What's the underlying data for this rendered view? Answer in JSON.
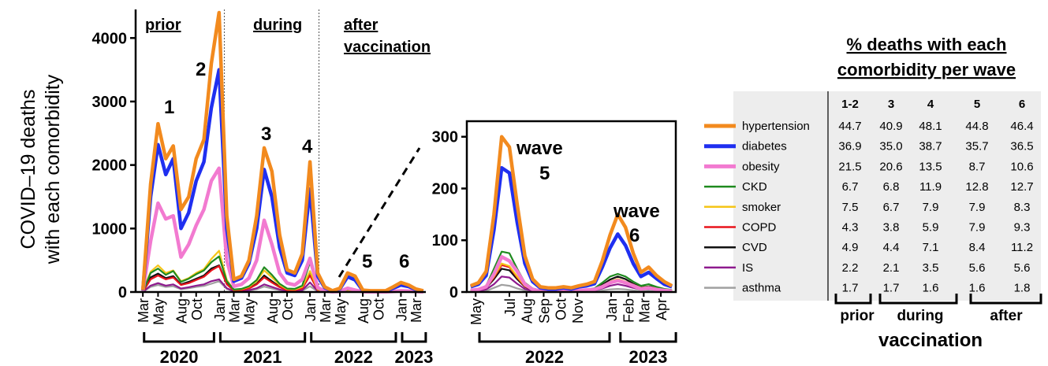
{
  "ylabel": [
    "COVID–19 deaths",
    "with each comorbidity"
  ],
  "main_chart": {
    "type": "line",
    "y_ticks": [
      0,
      1000,
      2000,
      3000,
      4000
    ],
    "ylim": [
      0,
      4450
    ],
    "period_labels": [
      "prior",
      "during"
    ],
    "after_label": [
      "after",
      "vaccination"
    ],
    "wave_labels": [
      "1",
      "2",
      "3",
      "4",
      "5",
      "6"
    ],
    "month_ticks": [
      "Mar",
      "May",
      "Aug",
      "Oct",
      "Jan",
      "Mar",
      "May",
      "Aug",
      "Oct",
      "Jan",
      "Mar",
      "May",
      "Aug",
      "Oct",
      "Jan",
      "Mar"
    ],
    "year_labels": [
      "2020",
      "2021",
      "2022",
      "2023"
    ]
  },
  "inset_chart": {
    "type": "line",
    "y_ticks": [
      0,
      100,
      200,
      300
    ],
    "ylim": [
      0,
      330
    ],
    "month_ticks": [
      "May",
      "Jul",
      "Aug",
      "Sep",
      "Oct",
      "Nov",
      "Jan",
      "Feb",
      "Mar",
      "Apr"
    ],
    "year_labels": [
      "2022",
      "2023"
    ],
    "wave5_label": [
      "wave",
      "5"
    ],
    "wave6_label": [
      "wave",
      "6"
    ]
  },
  "table": {
    "title": [
      "% deaths with each",
      "comorbidity per wave"
    ],
    "columns": [
      "1-2",
      "3",
      "4",
      "5",
      "6"
    ],
    "rows": [
      {
        "name": "hypertension",
        "color": "#f28a1e",
        "values": [
          "44.7",
          "40.9",
          "48.1",
          "44.8",
          "46.4"
        ]
      },
      {
        "name": "diabetes",
        "color": "#1f2ff0",
        "values": [
          "36.9",
          "35.0",
          "38.7",
          "35.7",
          "36.5"
        ]
      },
      {
        "name": "obesity",
        "color": "#f27ad0",
        "values": [
          "21.5",
          "20.6",
          "13.5",
          "8.7",
          "10.6"
        ]
      },
      {
        "name": "CKD",
        "color": "#1f8a1f",
        "values": [
          "6.7",
          "6.8",
          "11.9",
          "12.8",
          "12.7"
        ]
      },
      {
        "name": "smoker",
        "color": "#f5c518",
        "values": [
          "7.5",
          "6.7",
          "7.9",
          "7.9",
          "8.3"
        ]
      },
      {
        "name": "COPD",
        "color": "#e8141c",
        "values": [
          "4.3",
          "3.8",
          "5.9",
          "7.9",
          "9.3"
        ]
      },
      {
        "name": "CVD",
        "color": "#111111",
        "values": [
          "4.9",
          "4.4",
          "7.1",
          "8.4",
          "11.2"
        ]
      },
      {
        "name": "IS",
        "color": "#8e1a8e",
        "values": [
          "2.2",
          "2.1",
          "3.5",
          "5.6",
          "5.6"
        ]
      },
      {
        "name": "asthma",
        "color": "#a0a0a0",
        "values": [
          "1.7",
          "1.7",
          "1.6",
          "1.6",
          "1.8"
        ]
      }
    ],
    "footer": [
      "prior",
      "during",
      "after",
      "vaccination"
    ]
  },
  "chart_data": [
    {
      "type": "line",
      "title": "",
      "xlabel": "",
      "ylabel": "COVID–19 deaths with each comorbidity",
      "ylim": [
        0,
        4450
      ],
      "x": [
        "2020-03",
        "2020-04",
        "2020-05",
        "2020-06",
        "2020-07",
        "2020-08",
        "2020-09",
        "2020-10",
        "2020-11",
        "2020-12",
        "2021-01",
        "2021-02",
        "2021-03",
        "2021-04",
        "2021-05",
        "2021-06",
        "2021-07",
        "2021-08",
        "2021-09",
        "2021-10",
        "2021-11",
        "2021-12",
        "2022-01",
        "2022-02",
        "2022-03",
        "2022-04",
        "2022-05",
        "2022-06",
        "2022-07",
        "2022-08",
        "2022-09",
        "2022-10",
        "2022-11",
        "2022-12",
        "2023-01",
        "2023-02",
        "2023-03",
        "2023-04"
      ],
      "series": [
        {
          "name": "hypertension",
          "values": [
            30,
            1700,
            2650,
            2100,
            2300,
            1300,
            1500,
            2100,
            2400,
            3600,
            4400,
            1200,
            200,
            250,
            500,
            1200,
            2270,
            1900,
            900,
            350,
            300,
            600,
            2050,
            300,
            80,
            20,
            60,
            300,
            250,
            30,
            20,
            20,
            20,
            80,
            150,
            110,
            50,
            20
          ]
        },
        {
          "name": "diabetes",
          "values": [
            25,
            1500,
            2320,
            1850,
            2100,
            1000,
            1250,
            1750,
            2050,
            2900,
            3500,
            1000,
            170,
            220,
            450,
            1000,
            1930,
            1500,
            700,
            300,
            260,
            500,
            1620,
            250,
            70,
            15,
            50,
            240,
            190,
            25,
            15,
            15,
            15,
            60,
            110,
            85,
            40,
            15
          ]
        },
        {
          "name": "obesity",
          "values": [
            15,
            800,
            1400,
            1150,
            1200,
            550,
            750,
            1050,
            1300,
            1750,
            1950,
            500,
            90,
            120,
            220,
            500,
            1130,
            750,
            300,
            140,
            110,
            200,
            530,
            70,
            15,
            5,
            10,
            60,
            30,
            5,
            3,
            3,
            3,
            10,
            20,
            15,
            8,
            3
          ]
        },
        {
          "name": "CKD",
          "values": [
            5,
            300,
            370,
            270,
            330,
            160,
            210,
            280,
            340,
            470,
            560,
            170,
            40,
            50,
            90,
            190,
            390,
            270,
            130,
            55,
            50,
            100,
            470,
            50,
            10,
            3,
            8,
            40,
            30,
            5,
            3,
            3,
            3,
            15,
            20,
            15,
            8,
            3
          ]
        },
        {
          "name": "smoker",
          "values": [
            5,
            320,
            420,
            300,
            340,
            170,
            220,
            300,
            360,
            520,
            650,
            190,
            35,
            45,
            80,
            170,
            340,
            230,
            110,
            45,
            40,
            80,
            330,
            40,
            8,
            3,
            6,
            30,
            25,
            4,
            2,
            2,
            2,
            10,
            15,
            12,
            6,
            2
          ]
        },
        {
          "name": "COPD",
          "values": [
            3,
            200,
            260,
            200,
            230,
            110,
            140,
            190,
            240,
            340,
            410,
            120,
            25,
            30,
            55,
            120,
            230,
            150,
            75,
            30,
            27,
            55,
            260,
            30,
            6,
            2,
            5,
            25,
            20,
            3,
            2,
            2,
            2,
            8,
            12,
            10,
            5,
            2
          ]
        },
        {
          "name": "CVD",
          "values": [
            3,
            230,
            290,
            220,
            250,
            120,
            160,
            210,
            260,
            370,
            420,
            130,
            28,
            35,
            60,
            130,
            260,
            170,
            85,
            35,
            30,
            60,
            320,
            35,
            7,
            2,
            6,
            30,
            25,
            4,
            2,
            2,
            2,
            10,
            15,
            12,
            6,
            2
          ]
        },
        {
          "name": "IS",
          "values": [
            2,
            100,
            140,
            100,
            120,
            55,
            75,
            100,
            120,
            170,
            200,
            60,
            12,
            15,
            28,
            60,
            120,
            80,
            40,
            16,
            14,
            28,
            150,
            16,
            4,
            1,
            3,
            15,
            12,
            2,
            1,
            1,
            1,
            5,
            8,
            6,
            3,
            1
          ]
        },
        {
          "name": "asthma",
          "values": [
            2,
            80,
            110,
            80,
            90,
            45,
            60,
            80,
            95,
            130,
            170,
            50,
            10,
            12,
            20,
            45,
            85,
            55,
            28,
            12,
            10,
            20,
            90,
            10,
            2,
            1,
            2,
            8,
            5,
            1,
            1,
            1,
            1,
            3,
            5,
            4,
            2,
            1
          ]
        }
      ]
    },
    {
      "type": "line",
      "title": "",
      "xlabel": "",
      "ylabel": "",
      "ylim": [
        0,
        330
      ],
      "x": [
        "2022-04-22",
        "2022-05-06",
        "2022-05-20",
        "2022-06-03",
        "2022-06-17",
        "2022-07-01",
        "2022-07-15",
        "2022-07-29",
        "2022-08-12",
        "2022-08-26",
        "2022-09-09",
        "2022-09-23",
        "2022-10-07",
        "2022-10-21",
        "2022-11-04",
        "2022-11-18",
        "2022-12-02",
        "2022-12-16",
        "2022-12-30",
        "2023-01-13",
        "2023-01-27",
        "2023-02-10",
        "2023-02-24",
        "2023-03-10",
        "2023-03-24",
        "2023-04-07",
        "2023-04-21"
      ],
      "series": [
        {
          "name": "hypertension",
          "values": [
            12,
            18,
            40,
            150,
            300,
            280,
            170,
            70,
            25,
            10,
            8,
            8,
            10,
            8,
            12,
            15,
            20,
            60,
            110,
            150,
            125,
            75,
            38,
            48,
            32,
            20,
            12
          ]
        },
        {
          "name": "diabetes",
          "values": [
            10,
            15,
            32,
            120,
            240,
            230,
            135,
            55,
            20,
            8,
            6,
            6,
            8,
            6,
            10,
            12,
            16,
            48,
            85,
            112,
            90,
            55,
            30,
            38,
            26,
            15,
            10
          ]
        },
        {
          "name": "obesity",
          "values": [
            3,
            5,
            10,
            35,
            68,
            60,
            40,
            15,
            5,
            2,
            2,
            2,
            2,
            2,
            3,
            4,
            5,
            10,
            18,
            22,
            18,
            12,
            6,
            8,
            5,
            3,
            2
          ]
        },
        {
          "name": "CKD",
          "values": [
            4,
            6,
            12,
            45,
            78,
            75,
            45,
            18,
            7,
            3,
            2,
            2,
            3,
            2,
            4,
            5,
            7,
            18,
            30,
            35,
            30,
            20,
            12,
            15,
            10,
            6,
            4
          ]
        },
        {
          "name": "smoker",
          "values": [
            3,
            5,
            10,
            30,
            55,
            50,
            30,
            12,
            5,
            2,
            2,
            2,
            2,
            2,
            3,
            4,
            5,
            12,
            20,
            25,
            20,
            14,
            8,
            10,
            7,
            4,
            3
          ]
        },
        {
          "name": "COPD",
          "values": [
            2,
            4,
            8,
            28,
            52,
            48,
            28,
            11,
            4,
            2,
            1,
            1,
            2,
            1,
            2,
            3,
            4,
            10,
            18,
            22,
            18,
            12,
            7,
            9,
            6,
            3,
            2
          ]
        },
        {
          "name": "CVD",
          "values": [
            2,
            4,
            8,
            25,
            45,
            42,
            25,
            10,
            4,
            2,
            1,
            1,
            2,
            1,
            2,
            3,
            5,
            14,
            24,
            30,
            25,
            16,
            9,
            11,
            8,
            4,
            3
          ]
        },
        {
          "name": "IS",
          "values": [
            1,
            2,
            5,
            15,
            30,
            28,
            16,
            6,
            2,
            1,
            1,
            1,
            1,
            1,
            1,
            2,
            3,
            7,
            12,
            15,
            12,
            8,
            5,
            6,
            4,
            2,
            1
          ]
        },
        {
          "name": "asthma",
          "values": [
            1,
            1,
            2,
            8,
            14,
            12,
            7,
            3,
            1,
            1,
            0,
            0,
            1,
            0,
            1,
            1,
            1,
            3,
            5,
            6,
            5,
            3,
            2,
            2,
            1,
            1,
            1
          ]
        }
      ]
    }
  ]
}
